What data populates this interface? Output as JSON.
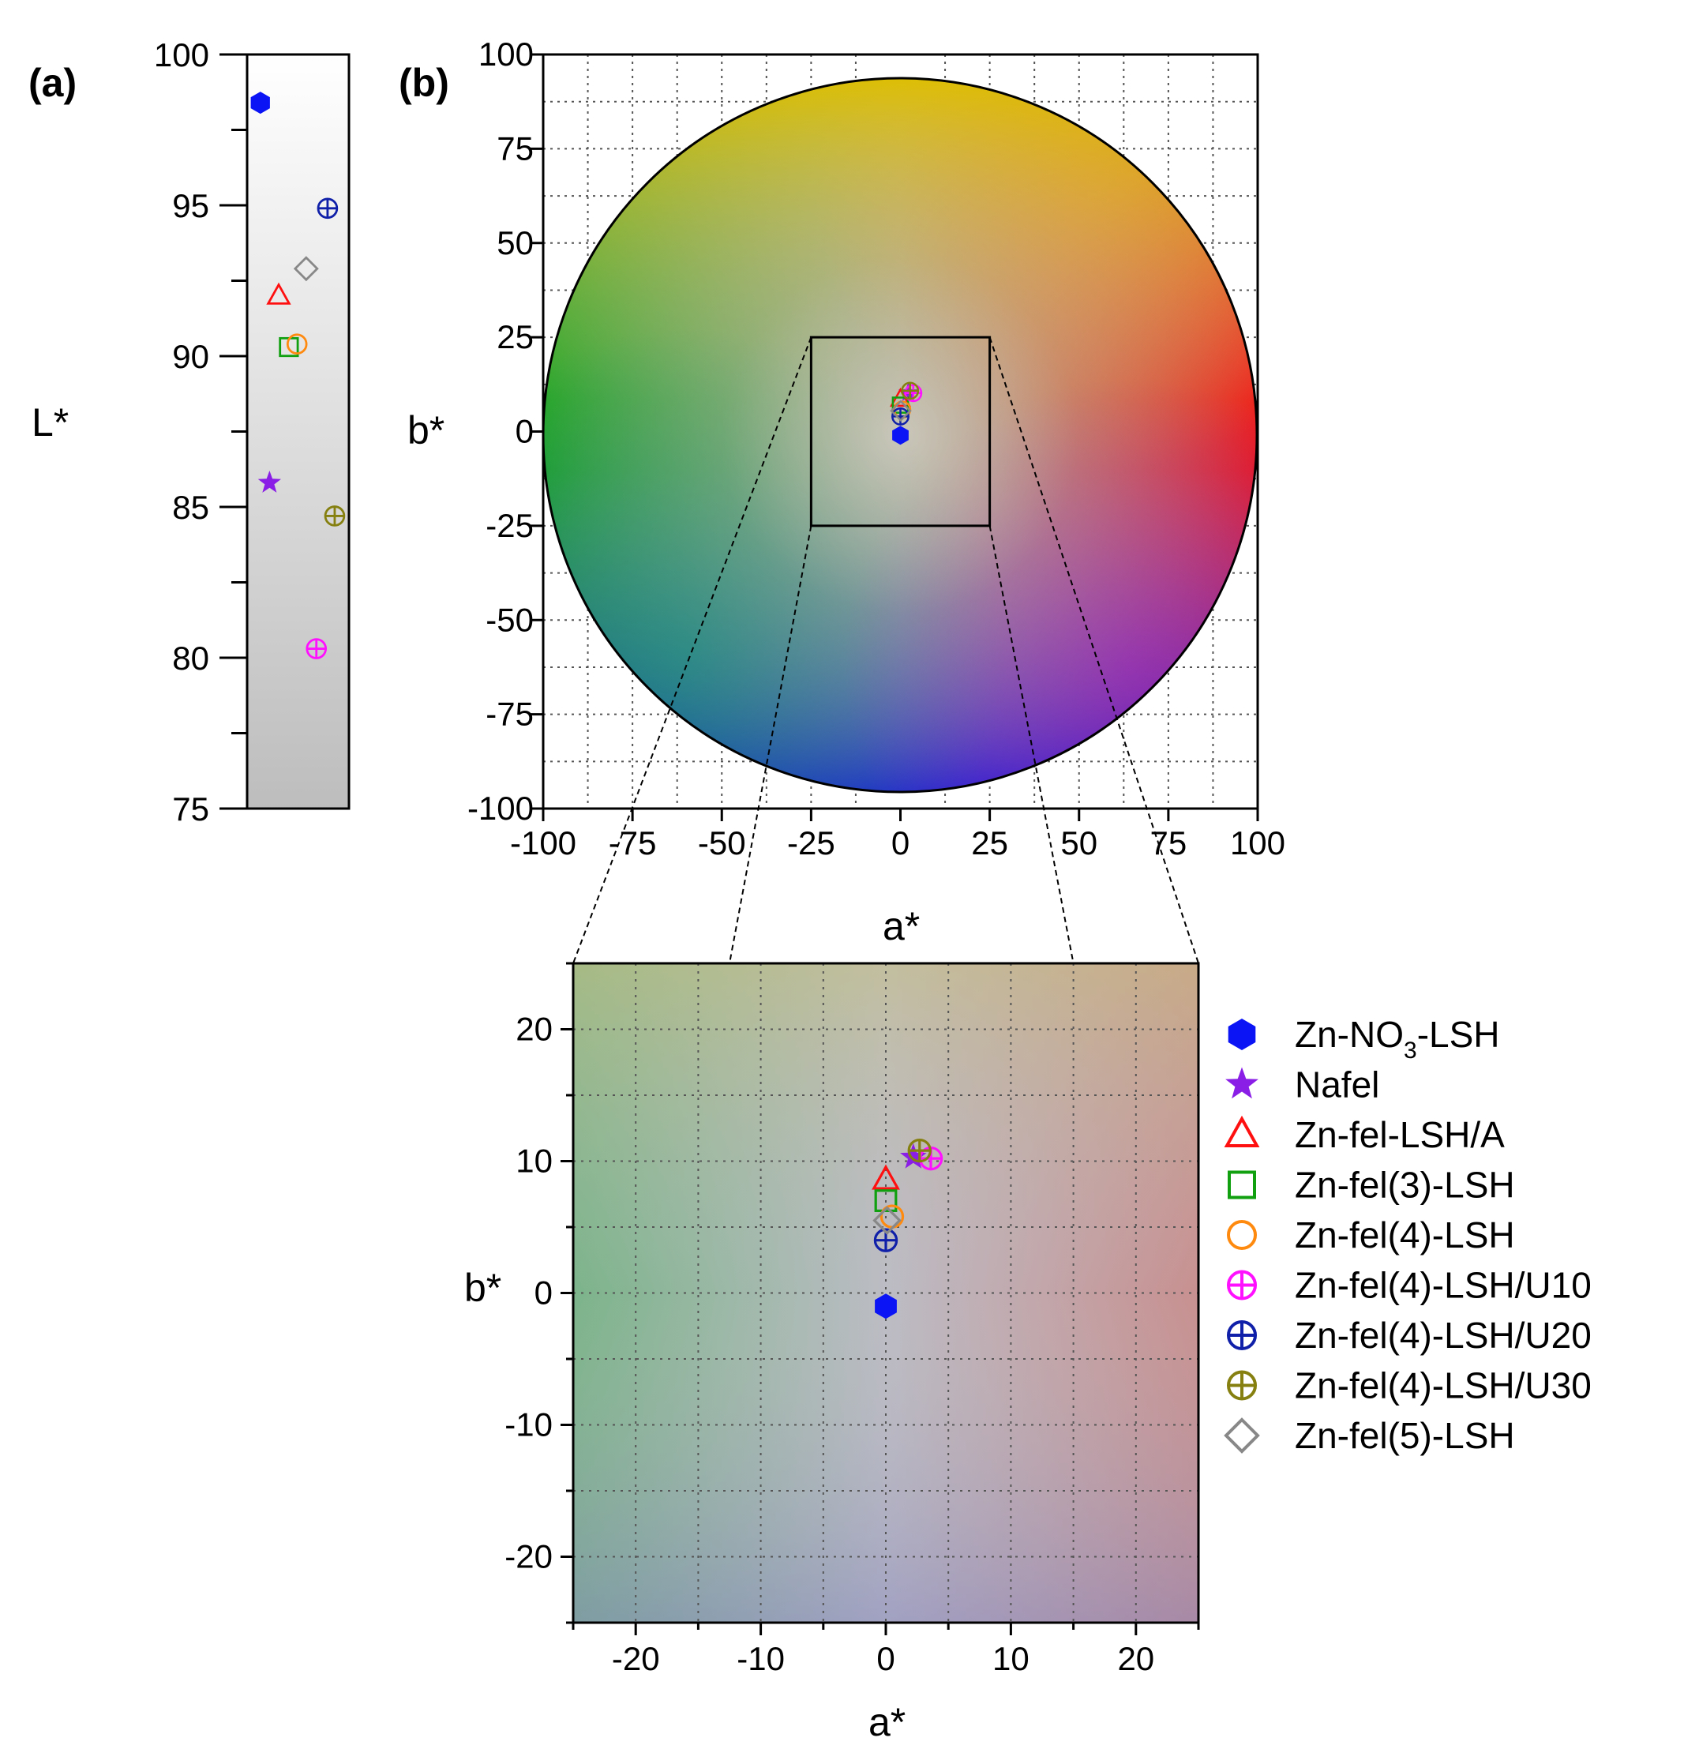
{
  "chart_data": [
    {
      "panel": "(a)",
      "type": "scatter",
      "ylabel": "L*",
      "ylim": [
        75,
        100
      ],
      "yticks": [
        "75",
        "80",
        "85",
        "90",
        "95",
        "100"
      ],
      "points": [
        {
          "series": "Zn-NO3-LSH",
          "L": 98.4
        },
        {
          "series": "Nafel",
          "L": 85.8
        },
        {
          "series": "Zn-fel-LSH/A",
          "L": 92.0
        },
        {
          "series": "Zn-fel(3)-LSH",
          "L": 90.3
        },
        {
          "series": "Zn-fel(4)-LSH",
          "L": 90.4
        },
        {
          "series": "Zn-fel(4)-LSH/U10",
          "L": 80.3
        },
        {
          "series": "Zn-fel(4)-LSH/U20",
          "L": 94.9
        },
        {
          "series": "Zn-fel(4)-LSH/U30",
          "L": 84.7
        },
        {
          "series": "Zn-fel(5)-LSH",
          "L": 92.9
        }
      ]
    },
    {
      "panel": "(b)",
      "type": "scatter",
      "xlabel": "a*",
      "ylabel": "b*",
      "xlim": [
        -100,
        100
      ],
      "ylim": [
        -100,
        100
      ],
      "xticks": [
        "-100",
        "-75",
        "-50",
        "-25",
        "0",
        "25",
        "50",
        "75",
        "100"
      ],
      "yticks": [
        "-100",
        "-75",
        "-50",
        "-25",
        "0",
        "25",
        "50",
        "75",
        "100"
      ],
      "grid": true,
      "zoom_box": {
        "a": [
          -25,
          25
        ],
        "b": [
          -25,
          25
        ]
      },
      "points": [
        {
          "series": "Zn-NO3-LSH",
          "a": 0.0,
          "b": -1.0
        },
        {
          "series": "Nafel",
          "a": 2.2,
          "b": 10.3
        },
        {
          "series": "Zn-fel-LSH/A",
          "a": 0.0,
          "b": 8.6
        },
        {
          "series": "Zn-fel(3)-LSH",
          "a": 0.0,
          "b": 7.0
        },
        {
          "series": "Zn-fel(4)-LSH",
          "a": 0.5,
          "b": 5.8
        },
        {
          "series": "Zn-fel(4)-LSH/U10",
          "a": 3.6,
          "b": 10.2
        },
        {
          "series": "Zn-fel(4)-LSH/U20",
          "a": 0.0,
          "b": 4.0
        },
        {
          "series": "Zn-fel(4)-LSH/U30",
          "a": 2.7,
          "b": 10.8
        },
        {
          "series": "Zn-fel(5)-LSH",
          "a": 0.1,
          "b": 5.5
        }
      ]
    },
    {
      "panel": "zoom",
      "type": "scatter",
      "xlabel": "a*",
      "ylabel": "b*",
      "xlim": [
        -25,
        25
      ],
      "ylim": [
        -25,
        25
      ],
      "xticks": [
        "-20",
        "-10",
        "0",
        "10",
        "20"
      ],
      "yticks": [
        "-20",
        "-10",
        "0",
        "10",
        "20"
      ],
      "grid": true
    }
  ],
  "labels": {
    "panel_a": "(a)",
    "panel_b": "(b)",
    "L_axis": "L*",
    "a_axis": "a*",
    "b_axis": "b*"
  },
  "legend": [
    {
      "key": "Zn-NO3-LSH",
      "text_main": "Zn-NO",
      "text_sub": "3",
      "text_tail": "-LSH",
      "marker": "hexagon",
      "color": "#0b14f5"
    },
    {
      "key": "Nafel",
      "text": "Nafel",
      "marker": "star",
      "color": "#8a1ee6"
    },
    {
      "key": "Zn-fel-LSH/A",
      "text": "Zn-fel-LSH/A",
      "marker": "triangle",
      "color": "#ff1010"
    },
    {
      "key": "Zn-fel(3)-LSH",
      "text": "Zn-fel(3)-LSH",
      "marker": "square",
      "color": "#10a010"
    },
    {
      "key": "Zn-fel(4)-LSH",
      "text": "Zn-fel(4)-LSH",
      "marker": "circle",
      "color": "#ff8a10"
    },
    {
      "key": "Zn-fel(4)-LSH/U10",
      "text": "Zn-fel(4)-LSH/U10",
      "marker": "circleplus",
      "color": "#ff10ff"
    },
    {
      "key": "Zn-fel(4)-LSH/U20",
      "text": "Zn-fel(4)-LSH/U20",
      "marker": "circleplus",
      "color": "#1020a8"
    },
    {
      "key": "Zn-fel(4)-LSH/U30",
      "text": "Zn-fel(4)-LSH/U30",
      "marker": "circleplus",
      "color": "#858010"
    },
    {
      "key": "Zn-fel(5)-LSH",
      "text": "Zn-fel(5)-LSH",
      "marker": "diamond",
      "color": "#888888"
    }
  ]
}
